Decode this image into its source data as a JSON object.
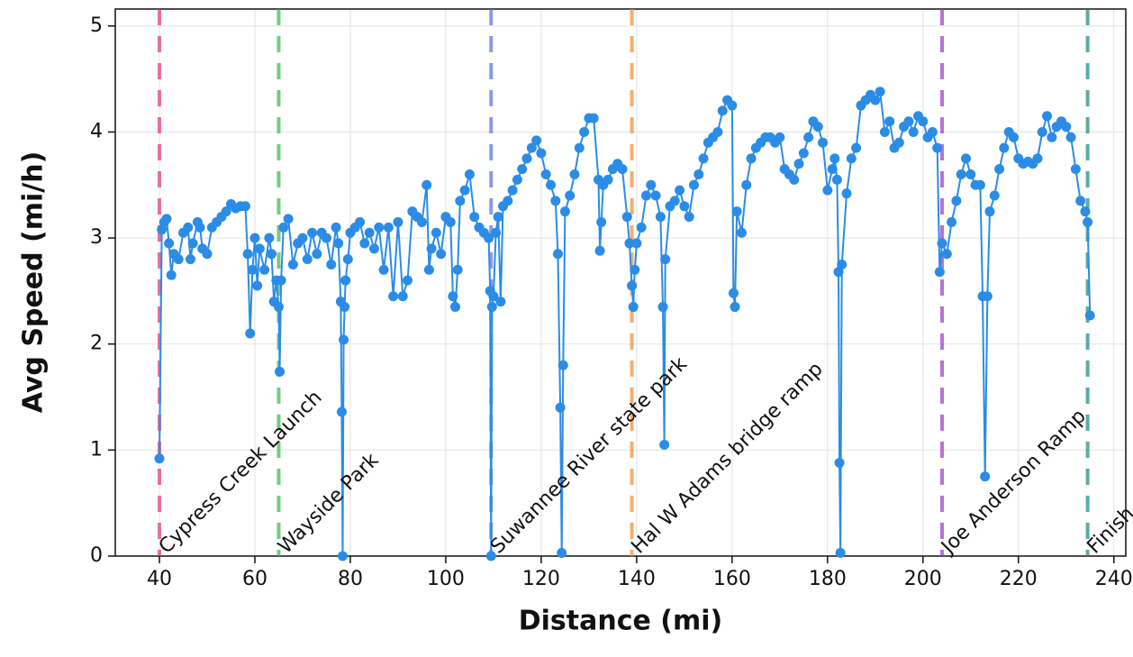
{
  "chart_data": {
    "type": "line",
    "xlabel": "Distance (mi)",
    "ylabel": "Avg Speed (mi/h)",
    "color": "#2b8ce6",
    "grid": true,
    "xlim": [
      30.75,
      242.5
    ],
    "ylim": [
      0,
      5.16
    ],
    "xticks": [
      40,
      60,
      80,
      100,
      120,
      140,
      160,
      180,
      200,
      220,
      240
    ],
    "yticks": [
      0,
      1,
      2,
      3,
      4,
      5
    ],
    "annotations": [
      {
        "x": 40,
        "label": "Cypress Creek Launch",
        "color": "#e23a6c"
      },
      {
        "x": 65,
        "label": "Wayside Park",
        "color": "#3fb34a"
      },
      {
        "x": 109.5,
        "label": "Suwannee River state park",
        "color": "#5b6fd8"
      },
      {
        "x": 139,
        "label": "Hal W Adams bridge ramp",
        "color": "#f28a30"
      },
      {
        "x": 204,
        "label": "Joe Anderson Ramp",
        "color": "#9b36c9"
      },
      {
        "x": 234.5,
        "label": "Finish",
        "color": "#16897f"
      }
    ],
    "x": [
      40,
      40.5,
      41,
      41.5,
      42,
      42.5,
      43,
      44,
      45,
      46,
      46.5,
      47,
      48,
      48.5,
      49,
      50,
      51,
      52,
      53,
      54,
      55,
      56,
      57,
      58,
      58.5,
      59,
      59.5,
      60,
      60.5,
      61,
      62,
      63,
      63.5,
      64,
      64.5,
      65,
      65.2,
      65.5,
      66,
      67,
      68,
      69,
      70,
      71,
      72,
      73,
      74,
      75,
      76,
      77,
      77.5,
      78,
      78.2,
      78.4,
      78.6,
      78.8,
      79,
      79.5,
      80,
      81,
      82,
      83,
      84,
      85,
      86,
      87,
      88,
      89,
      90,
      91,
      92,
      93,
      94,
      95,
      96,
      96.5,
      97,
      98,
      99,
      100,
      101,
      101.5,
      102,
      102.5,
      103,
      104,
      105,
      106,
      107,
      108,
      109,
      109.3,
      109.5,
      109.7,
      110,
      110.5,
      111,
      111.5,
      112,
      113,
      114,
      115,
      116,
      117,
      118,
      119,
      120,
      121,
      122,
      123,
      123.5,
      124,
      124.3,
      124.6,
      125,
      126,
      127,
      128,
      129,
      130,
      131,
      132,
      132.3,
      132.6,
      133,
      134,
      135,
      136,
      137,
      138,
      138.5,
      139,
      139.3,
      139.6,
      140,
      141,
      142,
      143,
      144,
      145,
      145.5,
      145.8,
      146,
      147,
      148,
      149,
      150,
      151,
      152,
      153,
      154,
      155,
      156,
      157,
      158,
      159,
      160,
      160.3,
      160.6,
      161,
      162,
      163,
      164,
      165,
      166,
      167,
      168,
      169,
      170,
      171,
      172,
      173,
      174,
      175,
      176,
      177,
      178,
      179,
      180,
      181,
      181.5,
      182,
      182.3,
      182.5,
      182.7,
      183,
      184,
      185,
      186,
      187,
      188,
      189,
      190,
      191,
      192,
      193,
      194,
      195,
      196,
      197,
      198,
      199,
      200,
      201,
      202,
      203,
      203.5,
      204,
      205,
      206,
      207,
      208,
      209,
      210,
      211,
      212,
      212.5,
      213,
      213.5,
      214,
      215,
      216,
      217,
      218,
      219,
      220,
      221,
      222,
      223,
      224,
      225,
      226,
      227,
      228,
      229,
      230,
      231,
      232,
      233,
      234,
      234.5,
      235
    ],
    "values": [
      0.92,
      3.08,
      3.15,
      3.18,
      2.95,
      2.65,
      2.85,
      2.8,
      3.05,
      3.1,
      2.8,
      2.95,
      3.15,
      3.1,
      2.9,
      2.85,
      3.1,
      3.15,
      3.2,
      3.25,
      3.32,
      3.28,
      3.3,
      3.3,
      2.85,
      2.1,
      2.7,
      3.0,
      2.55,
      2.9,
      2.7,
      3.0,
      2.85,
      2.4,
      2.6,
      2.35,
      1.74,
      2.6,
      3.1,
      3.18,
      2.75,
      2.95,
      3.0,
      2.8,
      3.05,
      2.85,
      3.05,
      3.0,
      2.75,
      3.1,
      2.95,
      2.4,
      1.36,
      0,
      2.04,
      2.35,
      2.6,
      2.8,
      3.05,
      3.1,
      3.15,
      2.95,
      3.05,
      2.9,
      3.1,
      2.7,
      3.1,
      2.45,
      3.15,
      2.45,
      2.6,
      3.25,
      3.2,
      3.15,
      3.5,
      2.7,
      2.9,
      3.05,
      2.85,
      3.2,
      3.15,
      2.45,
      2.35,
      2.7,
      3.35,
      3.45,
      3.6,
      3.2,
      3.1,
      3.05,
      3.0,
      2.5,
      0,
      2.35,
      2.45,
      3.05,
      3.2,
      2.4,
      3.3,
      3.35,
      3.45,
      3.55,
      3.65,
      3.75,
      3.85,
      3.92,
      3.8,
      3.6,
      3.5,
      3.35,
      2.85,
      1.4,
      0.03,
      1.8,
      3.25,
      3.4,
      3.6,
      3.85,
      4.0,
      4.13,
      4.13,
      3.55,
      2.88,
      3.15,
      3.5,
      3.55,
      3.65,
      3.7,
      3.65,
      3.2,
      2.95,
      2.55,
      2.35,
      2.7,
      2.95,
      3.1,
      3.4,
      3.5,
      3.4,
      3.2,
      2.35,
      1.05,
      2.8,
      3.3,
      3.35,
      3.45,
      3.3,
      3.2,
      3.5,
      3.6,
      3.75,
      3.9,
      3.95,
      4.0,
      4.2,
      4.3,
      4.25,
      2.48,
      2.35,
      3.25,
      3.05,
      3.5,
      3.75,
      3.85,
      3.9,
      3.95,
      3.95,
      3.9,
      3.95,
      3.65,
      3.6,
      3.55,
      3.7,
      3.8,
      3.95,
      4.1,
      4.05,
      3.9,
      3.45,
      3.65,
      3.75,
      3.55,
      2.68,
      0.88,
      0.03,
      2.75,
      3.42,
      3.75,
      3.85,
      4.25,
      4.3,
      4.35,
      4.3,
      4.38,
      4.0,
      4.1,
      3.85,
      3.9,
      4.05,
      4.1,
      4.0,
      4.15,
      4.1,
      3.95,
      4.0,
      3.85,
      2.68,
      2.95,
      2.85,
      3.15,
      3.35,
      3.6,
      3.75,
      3.6,
      3.5,
      3.5,
      2.45,
      0.75,
      2.45,
      3.25,
      3.4,
      3.65,
      3.85,
      4.0,
      3.95,
      3.75,
      3.7,
      3.72,
      3.7,
      3.75,
      4.0,
      4.15,
      3.95,
      4.05,
      4.1,
      4.05,
      3.95,
      3.65,
      3.35,
      3.25,
      3.15,
      2.27
    ]
  }
}
